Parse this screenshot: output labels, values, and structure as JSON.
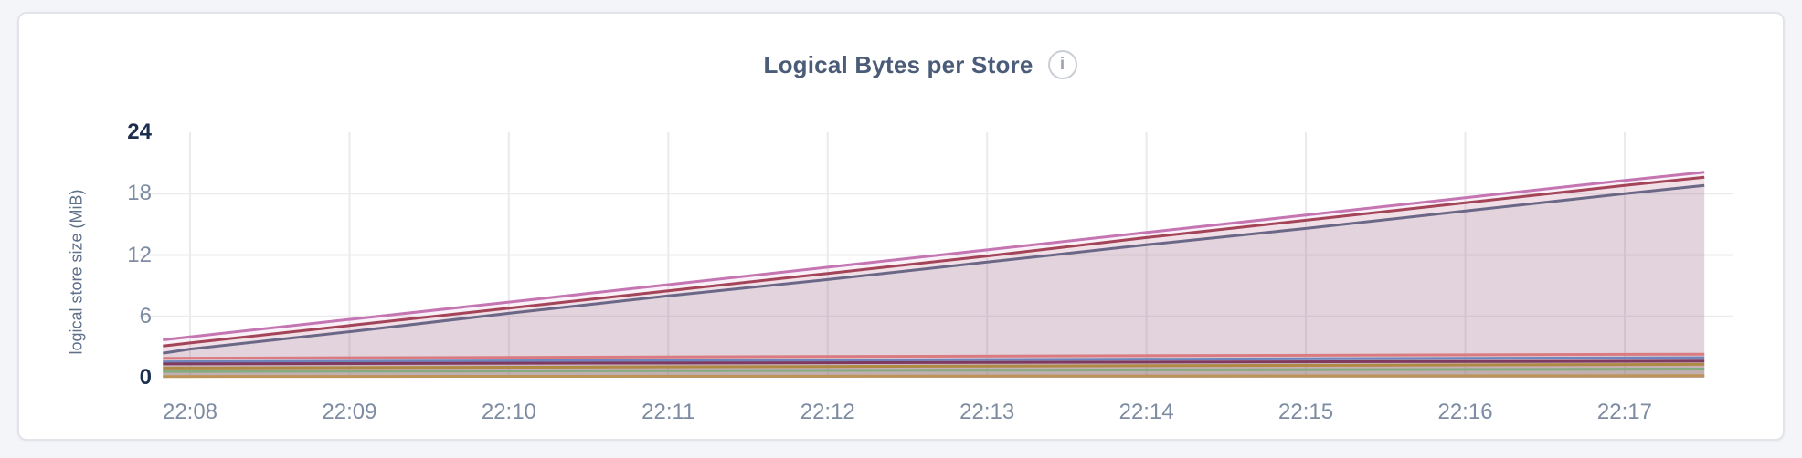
{
  "header": {
    "title": "Logical Bytes per Store",
    "info_icon_glyph": "i"
  },
  "colors": {
    "page_bg": "#f4f5f9",
    "card_bg": "#ffffff",
    "card_border": "#e3e4e9",
    "title_color": "#4a5c78",
    "axis_title_color": "#5f7089",
    "tick_color": "#7d8ca2",
    "tick_bold_color": "#1b2e50",
    "grid_color": "#ebebee"
  },
  "chart_data": {
    "type": "area",
    "title": "Logical Bytes per Store",
    "xlabel": "",
    "ylabel": "logical store size (MiB)",
    "unit": "MiB",
    "ylim": [
      0,
      24
    ],
    "yticks": [
      0,
      6,
      12,
      18,
      24
    ],
    "yticks_bold": [
      0,
      24
    ],
    "xticks": [
      "22:08",
      "22:09",
      "22:10",
      "22:11",
      "22:12",
      "22:13",
      "22:14",
      "22:15",
      "22:16",
      "22:17"
    ],
    "x_start_offset_min": -0.17,
    "x_end_offset_min": 9.5,
    "grid": true,
    "legend_position": "none",
    "series": [
      {
        "id": "s1",
        "color": "#c475b2",
        "points": [
          [
            -0.17,
            3.7
          ],
          [
            0,
            4.0
          ],
          [
            1,
            5.7
          ],
          [
            2,
            7.4
          ],
          [
            3,
            9.1
          ],
          [
            4,
            10.8
          ],
          [
            5,
            12.5
          ],
          [
            6,
            14.2
          ],
          [
            7,
            15.9
          ],
          [
            8,
            17.6
          ],
          [
            9,
            19.3
          ],
          [
            9.5,
            20.1
          ]
        ]
      },
      {
        "id": "s2",
        "color": "#a44458",
        "points": [
          [
            -0.17,
            3.1
          ],
          [
            0,
            3.4
          ],
          [
            1,
            5.1
          ],
          [
            2,
            6.8
          ],
          [
            3,
            8.5
          ],
          [
            4,
            10.2
          ],
          [
            5,
            11.9
          ],
          [
            6,
            13.7
          ],
          [
            7,
            15.4
          ],
          [
            8,
            17.1
          ],
          [
            9,
            18.8
          ],
          [
            9.5,
            19.6
          ]
        ]
      },
      {
        "id": "s3",
        "color": "#6b6887",
        "points": [
          [
            -0.17,
            2.4
          ],
          [
            0,
            2.8
          ],
          [
            1,
            4.5
          ],
          [
            2,
            6.3
          ],
          [
            3,
            8.0
          ],
          [
            4,
            9.6
          ],
          [
            5,
            11.3
          ],
          [
            6,
            13.0
          ],
          [
            7,
            14.6
          ],
          [
            8,
            16.3
          ],
          [
            9,
            18.0
          ],
          [
            9.5,
            18.8
          ]
        ]
      },
      {
        "id": "s4",
        "color": "#d97b80",
        "points": [
          [
            -0.17,
            1.9
          ],
          [
            9.5,
            2.3
          ]
        ]
      },
      {
        "id": "s5",
        "color": "#6e86bd",
        "points": [
          [
            -0.17,
            1.55
          ],
          [
            9.5,
            1.95
          ]
        ]
      },
      {
        "id": "s6",
        "color": "#7f3a60",
        "points": [
          [
            -0.17,
            1.35
          ],
          [
            9.5,
            1.62
          ]
        ]
      },
      {
        "id": "s7",
        "color": "#ae8a43",
        "points": [
          [
            -0.17,
            0.95
          ],
          [
            9.5,
            1.3
          ]
        ]
      },
      {
        "id": "s8",
        "color": "#85ab80",
        "points": [
          [
            -0.17,
            0.62
          ],
          [
            9.5,
            0.85
          ]
        ]
      },
      {
        "id": "s9",
        "color": "#bd9357",
        "points": [
          [
            -0.17,
            0.12
          ],
          [
            9.5,
            0.2
          ]
        ]
      }
    ]
  }
}
